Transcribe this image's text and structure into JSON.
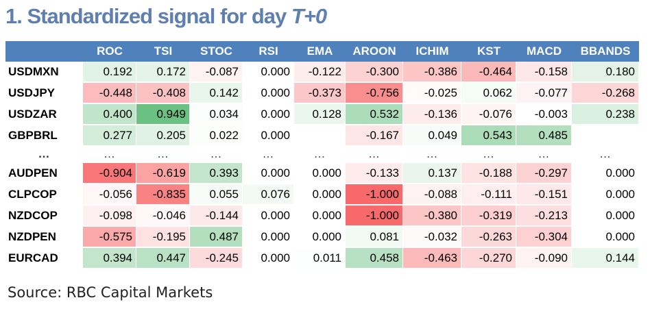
{
  "title": {
    "main": "1. Standardized signal for day ",
    "italic": "T+0"
  },
  "source": "Source: RBC Capital Markets",
  "chart_data": {
    "type": "table",
    "columns": [
      "",
      "ROC",
      "TSI",
      "STOC",
      "RSI",
      "EMA",
      "AROON",
      "ICHIM",
      "KST",
      "MACD",
      "BBANDS"
    ],
    "rows": [
      {
        "ticker": "USDMXN",
        "values": [
          "0.192",
          "0.172",
          "-0.087",
          "0.000",
          "-0.122",
          "-0.300",
          "-0.386",
          "-0.464",
          "-0.158",
          "0.180"
        ]
      },
      {
        "ticker": "USDJPY",
        "values": [
          "-0.448",
          "-0.408",
          "0.142",
          "0.000",
          "-0.373",
          "-0.756",
          "-0.025",
          "0.062",
          "-0.077",
          "-0.268"
        ]
      },
      {
        "ticker": "USDZAR",
        "values": [
          "0.400",
          "0.949",
          "0.034",
          "0.000",
          "0.128",
          "0.532",
          "-0.136",
          "-0.076",
          "-0.003",
          "0.238"
        ]
      },
      {
        "ticker": "GBPBRL",
        "values": [
          "0.277",
          "0.205",
          "0.022",
          "0.000",
          "",
          "-0.167",
          "0.049",
          "0.543",
          "0.485",
          ""
        ]
      },
      {
        "ticker": "…",
        "ellipsis": true,
        "values": [
          "…",
          "…",
          "…",
          "…",
          "…",
          "…",
          "…",
          "…",
          "…",
          "…"
        ]
      },
      {
        "ticker": "AUDPEN",
        "values": [
          "-0.904",
          "-0.619",
          "0.393",
          "0.000",
          "0.000",
          "-0.133",
          "0.137",
          "-0.188",
          "-0.297",
          "0.000"
        ]
      },
      {
        "ticker": "CLPCOP",
        "values": [
          "-0.056",
          "-0.835",
          "0.055",
          "0.076",
          "0.000",
          "-1.000",
          "-0.088",
          "-0.111",
          "-0.151",
          "0.000"
        ]
      },
      {
        "ticker": "NZDCOP",
        "values": [
          "-0.098",
          "-0.046",
          "-0.144",
          "0.000",
          "0.000",
          "-1.000",
          "-0.380",
          "-0.319",
          "-0.213",
          "0.000"
        ]
      },
      {
        "ticker": "NZDPEN",
        "values": [
          "-0.575",
          "-0.195",
          "0.487",
          "0.000",
          "0.000",
          "0.081",
          "-0.032",
          "-0.263",
          "-0.304",
          "0.000"
        ]
      },
      {
        "ticker": "EURCAD",
        "values": [
          "0.394",
          "0.447",
          "-0.245",
          "0.000",
          "0.011",
          "0.458",
          "-0.463",
          "-0.270",
          "-0.090",
          "0.144"
        ]
      }
    ],
    "colors": {
      "header_bg": "#4f81bd",
      "title": "#5f7fb0",
      "positive": "#63be7b",
      "negative": "#f8696b",
      "neutral": "#ffffff"
    }
  }
}
